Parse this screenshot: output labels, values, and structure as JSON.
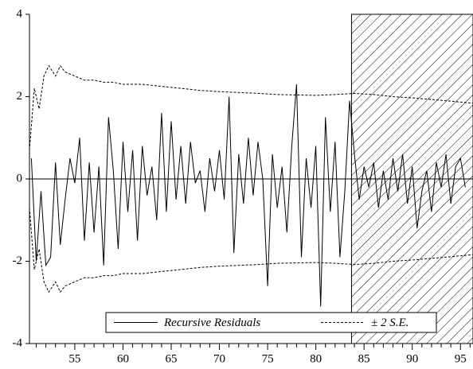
{
  "chart_data": {
    "type": "line",
    "xlim": [
      50.3,
      96.3
    ],
    "ylim": [
      -4,
      4
    ],
    "xticks": [
      55,
      60,
      65,
      70,
      75,
      80,
      85,
      90,
      95
    ],
    "xminorticks": [
      51,
      52,
      53,
      54,
      56,
      57,
      58,
      59,
      61,
      62,
      63,
      64,
      66,
      67,
      68,
      69,
      71,
      72,
      73,
      74,
      76,
      77,
      78,
      79,
      81,
      82,
      83,
      84,
      86,
      87,
      88,
      89,
      91,
      92,
      93,
      94,
      96
    ],
    "yticks": [
      -4,
      -2,
      0,
      2,
      4
    ],
    "zero_line": true,
    "shaded_x": [
      83.7,
      96.3
    ],
    "series": [
      {
        "name": "Recursive Residuals",
        "color": "#000000",
        "style": "solid",
        "x": [
          50.5,
          51,
          51.5,
          52,
          52.5,
          53,
          53.5,
          54,
          54.5,
          55,
          55.5,
          56,
          56.5,
          57,
          57.5,
          58,
          58.5,
          59,
          59.5,
          60,
          60.5,
          61,
          61.5,
          62,
          62.5,
          63,
          63.5,
          64,
          64.5,
          65,
          65.5,
          66,
          66.5,
          67,
          67.5,
          68,
          68.5,
          69,
          69.5,
          70,
          70.5,
          71,
          71.5,
          72,
          72.5,
          73,
          73.5,
          74,
          74.5,
          75,
          75.5,
          76,
          76.5,
          77,
          77.5,
          78,
          78.5,
          79,
          79.5,
          80,
          80.5,
          81,
          81.5,
          82,
          82.5,
          83,
          83.5,
          84,
          84.5,
          85,
          85.5,
          86,
          86.5,
          87,
          87.5,
          88,
          88.5,
          89,
          89.5,
          90,
          90.5,
          91,
          91.5,
          92,
          92.5,
          93,
          93.5,
          94,
          94.5,
          95,
          95.5
        ],
        "values": [
          0.5,
          -2.0,
          -0.3,
          -2.1,
          -1.9,
          0.4,
          -1.6,
          -0.5,
          0.5,
          -0.1,
          1.0,
          -1.5,
          0.4,
          -1.3,
          0.3,
          -2.1,
          1.5,
          0.2,
          -1.7,
          0.9,
          -0.8,
          0.7,
          -1.5,
          0.8,
          -0.4,
          0.3,
          -1.0,
          1.6,
          -0.8,
          1.4,
          -0.5,
          0.8,
          -0.6,
          0.9,
          -0.1,
          0.2,
          -0.8,
          0.5,
          -0.3,
          0.7,
          -0.5,
          2.0,
          -1.8,
          0.6,
          -0.6,
          1.0,
          -0.4,
          0.9,
          0.0,
          -2.6,
          0.6,
          -0.7,
          0.3,
          -1.3,
          0.8,
          2.3,
          -1.9,
          0.5,
          -0.7,
          0.8,
          -3.1,
          1.5,
          -0.8,
          0.9,
          -1.9,
          -0.3,
          1.9,
          0.6,
          -0.5,
          0.3,
          -0.2,
          0.4,
          -0.7,
          0.2,
          -0.5,
          0.5,
          -0.3,
          0.6,
          -0.6,
          0.3,
          -1.2,
          -0.3,
          0.2,
          -0.8,
          0.4,
          -0.2,
          0.6,
          -0.6,
          0.3,
          0.5,
          -0.2
        ]
      },
      {
        "name": "± 2 S.E.",
        "color": "#000000",
        "style": "dashed",
        "x": [
          50.3,
          50.8,
          51.3,
          51.8,
          52.3,
          53,
          53.5,
          54,
          55,
          56,
          57,
          58,
          59,
          60,
          62,
          64,
          66,
          68,
          70,
          72,
          74,
          76,
          78,
          80,
          82,
          84,
          86,
          88,
          90,
          92,
          94,
          96.3
        ],
        "values": [
          0.7,
          2.2,
          1.7,
          2.5,
          2.75,
          2.5,
          2.75,
          2.6,
          2.5,
          2.4,
          2.4,
          2.35,
          2.35,
          2.3,
          2.3,
          2.25,
          2.2,
          2.15,
          2.12,
          2.1,
          2.08,
          2.05,
          2.04,
          2.03,
          2.05,
          2.08,
          2.05,
          2.0,
          1.97,
          1.93,
          1.89,
          1.84
        ],
        "lower": [
          -0.7,
          -2.2,
          -1.7,
          -2.5,
          -2.75,
          -2.5,
          -2.75,
          -2.6,
          -2.5,
          -2.4,
          -2.4,
          -2.35,
          -2.35,
          -2.3,
          -2.3,
          -2.25,
          -2.2,
          -2.15,
          -2.12,
          -2.1,
          -2.08,
          -2.05,
          -2.04,
          -2.03,
          -2.05,
          -2.08,
          -2.05,
          -2.0,
          -1.97,
          -1.93,
          -1.89,
          -1.84
        ]
      }
    ]
  }
}
